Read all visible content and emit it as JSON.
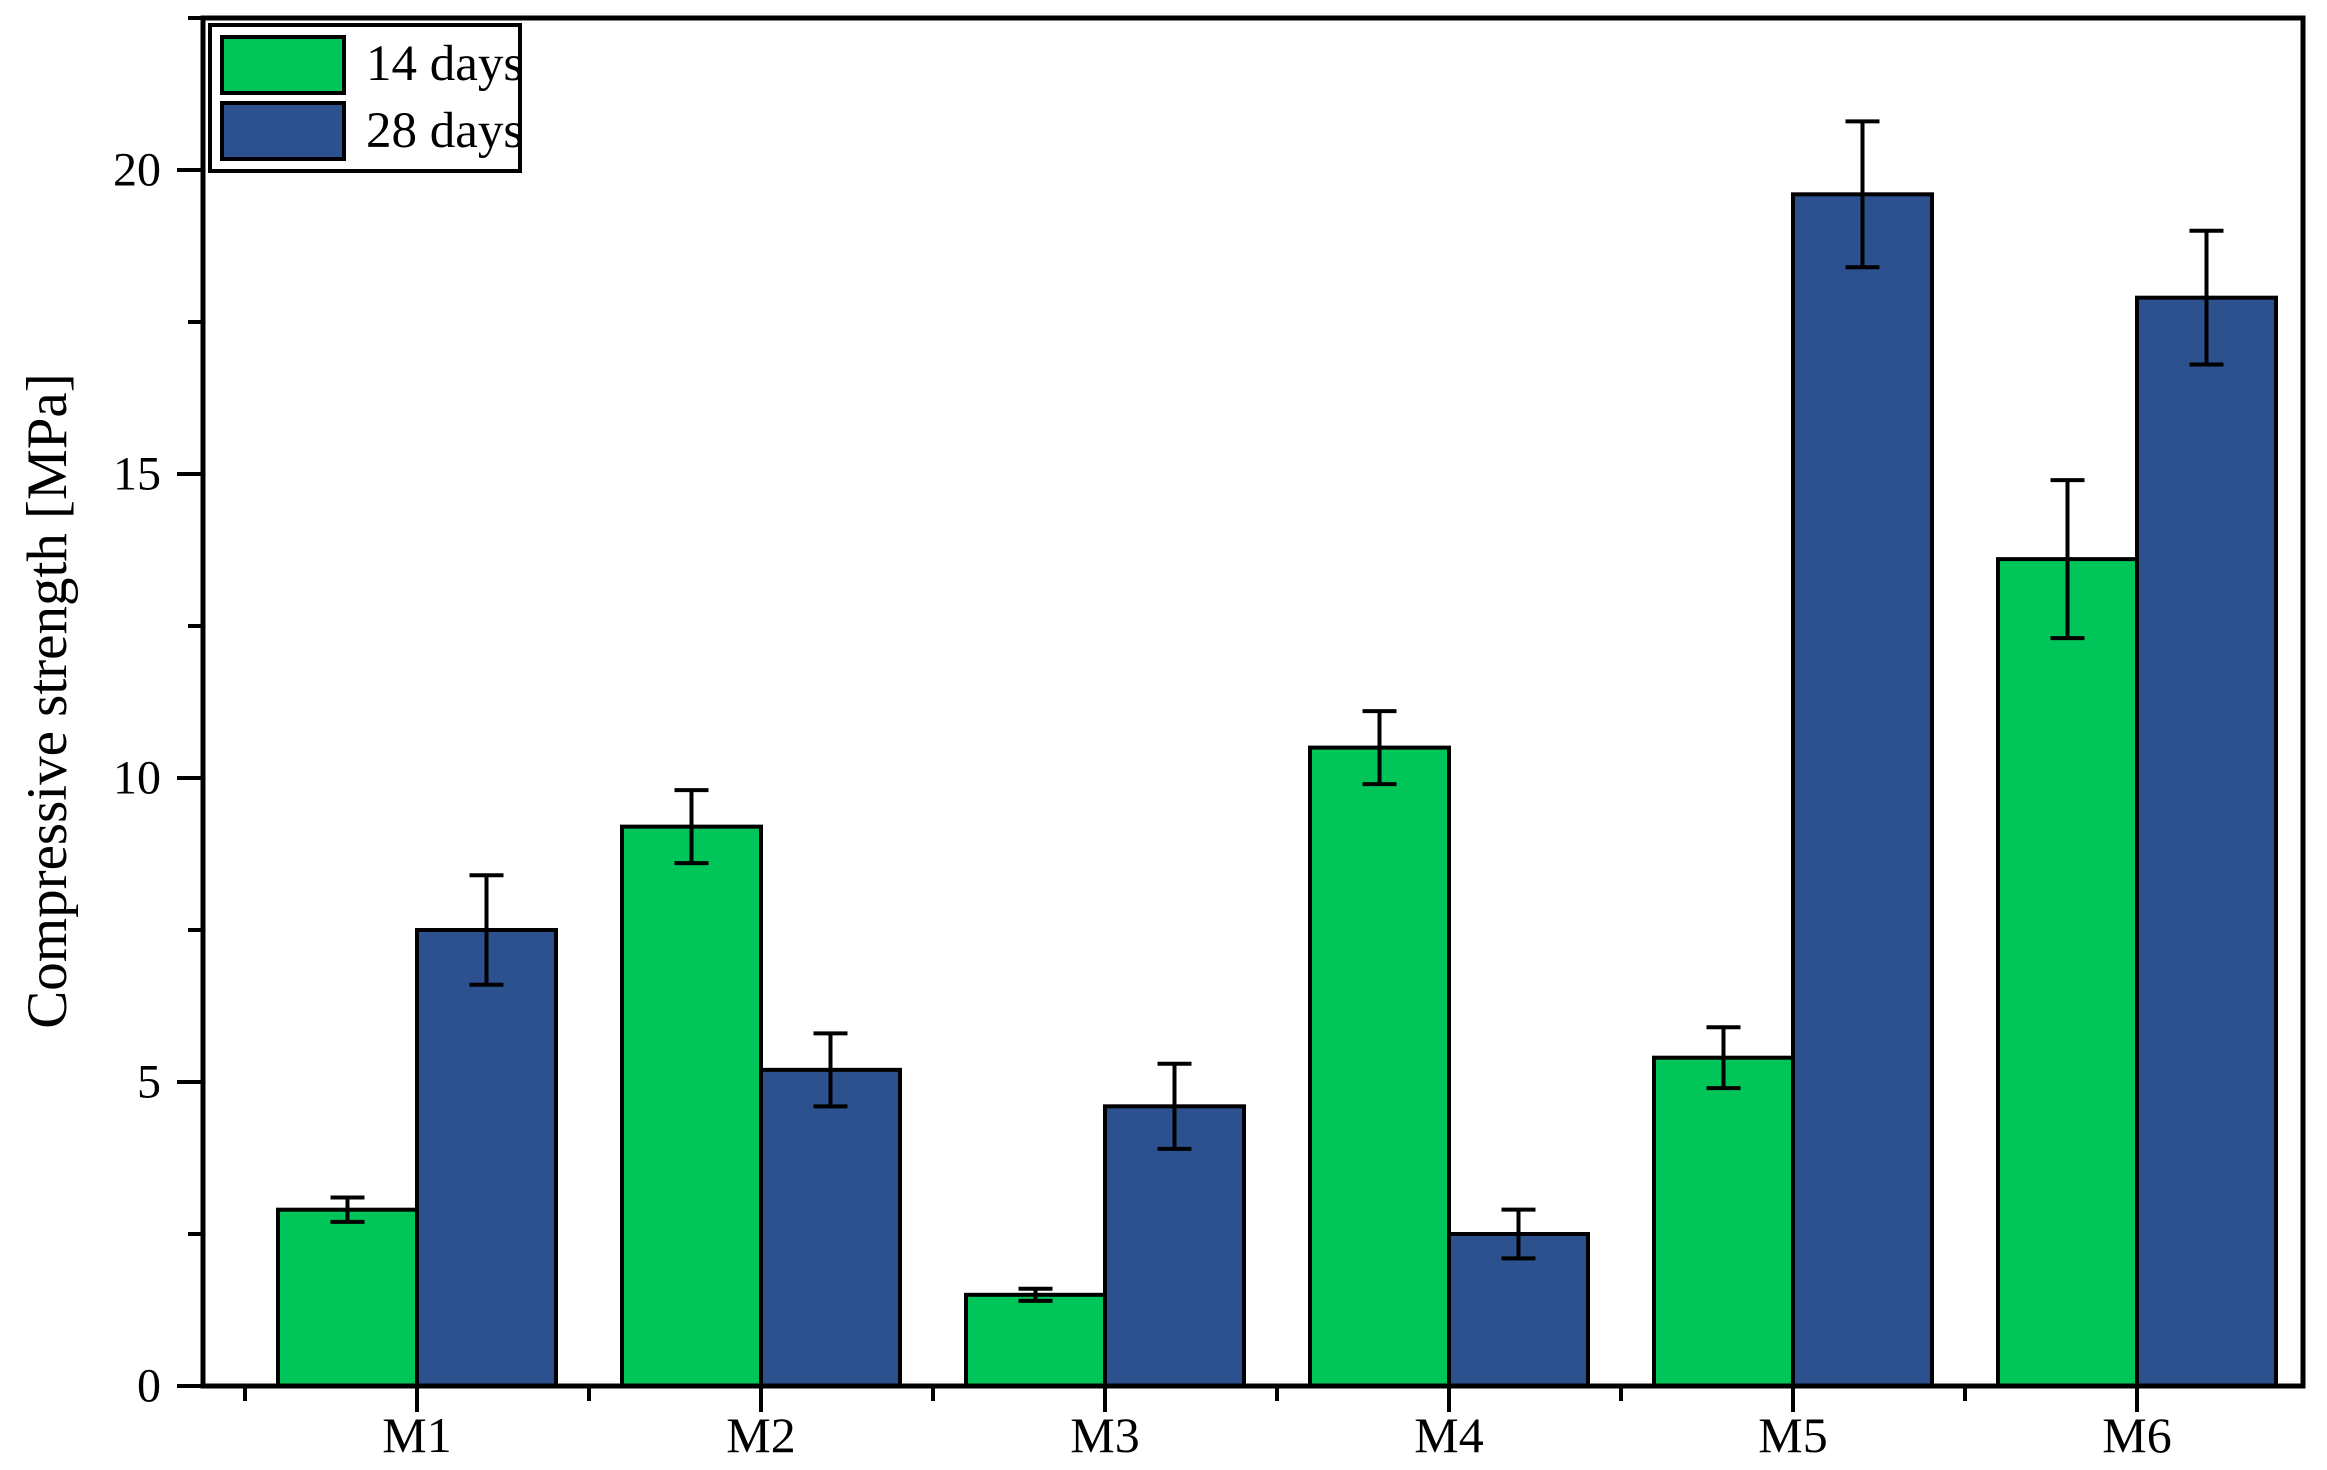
{
  "chart_data": {
    "type": "bar",
    "title": "",
    "categories": [
      "M1",
      "M2",
      "M3",
      "M4",
      "M5",
      "M6"
    ],
    "series": [
      {
        "name": "14 days",
        "color": "#00C65A",
        "values": [
          2.9,
          9.2,
          1.5,
          10.5,
          5.4,
          13.6
        ],
        "errors": [
          0.2,
          0.6,
          0.1,
          0.6,
          0.5,
          1.3
        ]
      },
      {
        "name": "28 days",
        "color": "#2D518F",
        "values": [
          7.5,
          5.2,
          4.6,
          2.5,
          19.6,
          17.9
        ],
        "errors": [
          0.9,
          0.6,
          0.7,
          0.4,
          1.2,
          1.1
        ]
      }
    ],
    "xlabel": "",
    "ylabel": "Compressive strength [MPa]",
    "ylim": [
      0,
      22.5
    ],
    "y_major_ticks": [
      0,
      5,
      10,
      15,
      20
    ],
    "y_minor_ticks": [
      2.5,
      7.5,
      12.5,
      17.5,
      22.5
    ],
    "grid": false,
    "error_bars": true,
    "bar_outline_color": "#000000",
    "legend_position": "top-left"
  }
}
